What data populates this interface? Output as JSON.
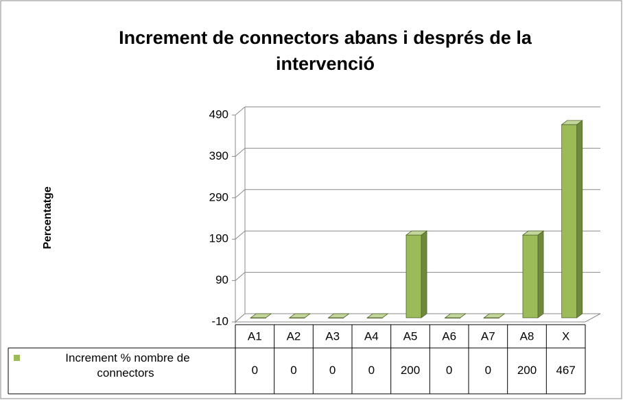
{
  "chart_data": {
    "type": "bar3d",
    "title": "Increment de connectors abans i després de la intervenció",
    "y_label": "Percentatge",
    "categories": [
      "A1",
      "A2",
      "A3",
      "A4",
      "A5",
      "A6",
      "A7",
      "A8",
      "X"
    ],
    "series": [
      {
        "name": "Increment % nombre de connectors",
        "color": "#9bbb59",
        "values": [
          0,
          0,
          0,
          0,
          200,
          0,
          0,
          200,
          467
        ]
      }
    ],
    "ylim": [
      -10,
      490
    ],
    "yticks": [
      -10,
      90,
      190,
      290,
      390,
      490
    ],
    "grid": true,
    "data_table": true
  }
}
